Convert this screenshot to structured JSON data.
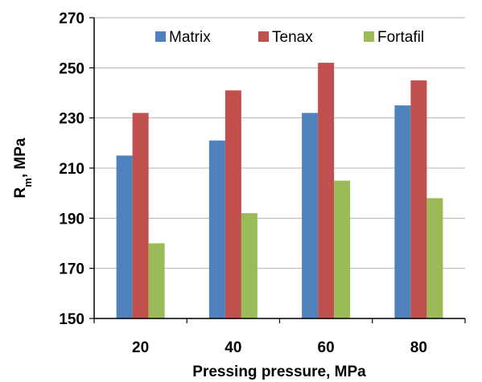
{
  "chart_data": {
    "type": "bar",
    "title": "",
    "xlabel": "Pressing pressure, MPa",
    "ylabel": {
      "base": "R",
      "sub": "m",
      "rest": ", MPa"
    },
    "categories": [
      "20",
      "40",
      "60",
      "80"
    ],
    "series": [
      {
        "name": "Matrix",
        "values": [
          215,
          221,
          232,
          235
        ],
        "color": "#4f81bd"
      },
      {
        "name": "Tenax",
        "values": [
          232,
          241,
          252,
          245
        ],
        "color": "#c0504d"
      },
      {
        "name": "Fortafil",
        "values": [
          180,
          192,
          205,
          198
        ],
        "color": "#9bbb59"
      }
    ],
    "ylim": [
      150,
      270
    ],
    "yticks": [
      "150",
      "170",
      "190",
      "210",
      "230",
      "250",
      "270"
    ],
    "grid": "horizontal",
    "legend": "top-right, inside plot"
  }
}
